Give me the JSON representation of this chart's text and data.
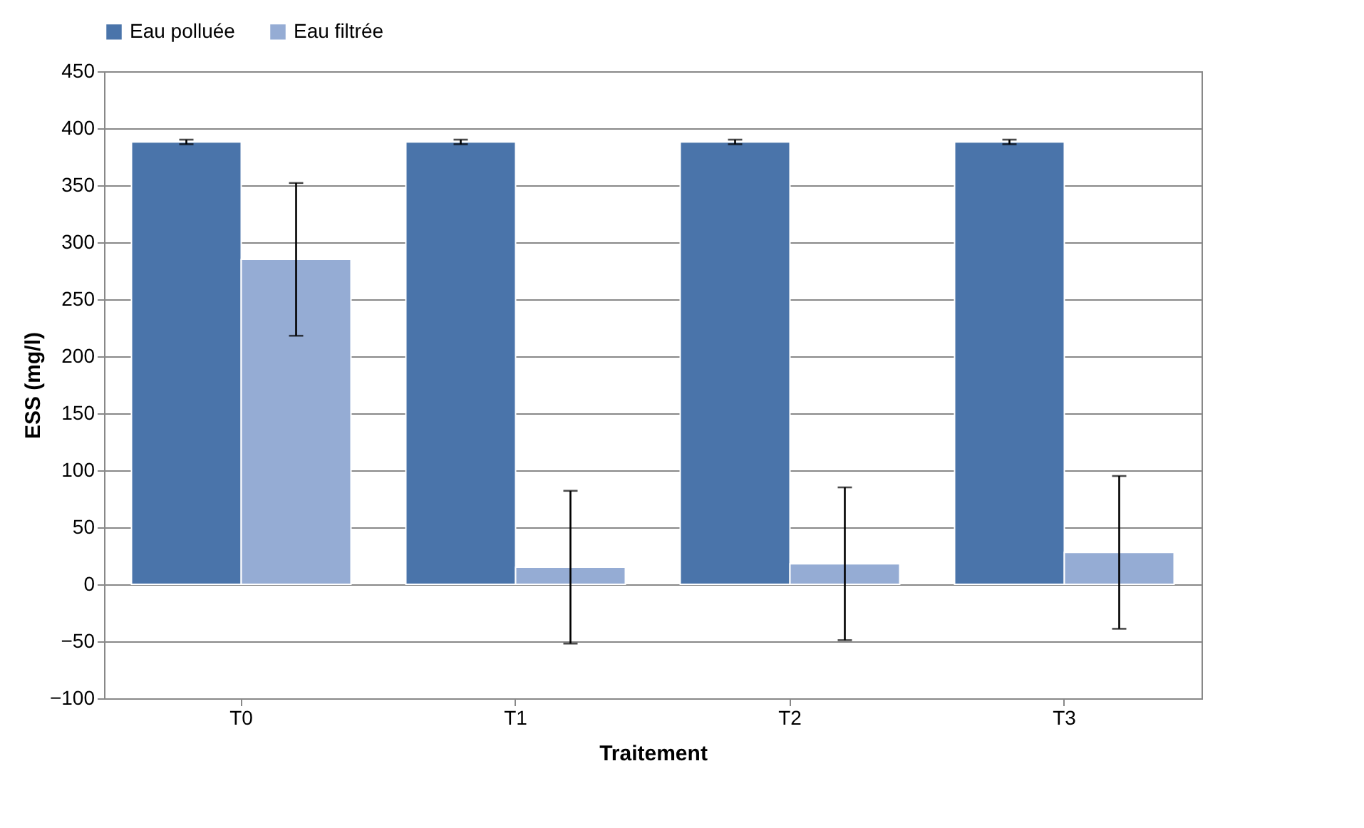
{
  "chart_data": {
    "type": "bar",
    "xlabel": "Traitement",
    "ylabel": "ESS (mg/l)",
    "categories": [
      "T0",
      "T1",
      "T2",
      "T3"
    ],
    "series": [
      {
        "name": "Eau polluée",
        "color": "#4a74aa",
        "values": [
          388,
          388,
          388,
          388
        ],
        "errors": [
          2,
          2,
          2,
          2
        ]
      },
      {
        "name": "Eau filtrée",
        "color": "#95acd4",
        "values": [
          285,
          15,
          18,
          28
        ],
        "errors": [
          67,
          67,
          67,
          67
        ]
      }
    ],
    "ylim": [
      -100,
      450
    ],
    "yticks": [
      -100,
      -50,
      0,
      50,
      100,
      150,
      200,
      250,
      300,
      350,
      400,
      450
    ],
    "grid": "y",
    "legend": "top"
  }
}
